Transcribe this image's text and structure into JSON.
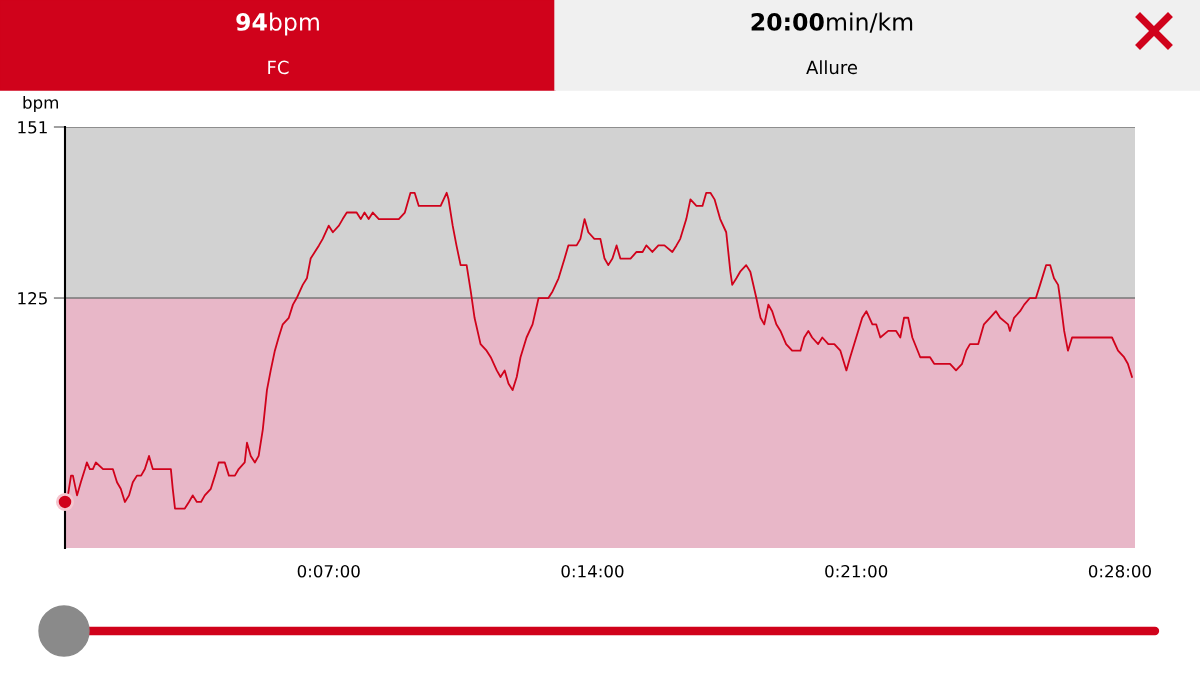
{
  "chart_data": {
    "type": "line",
    "ylabel": "bpm",
    "annotations": [
      "94bpm",
      "FC",
      "20:00min/km",
      "Allure"
    ],
    "xlim": [
      0,
      28.4
    ],
    "ylim": [
      87,
      151
    ],
    "xticks": [
      {
        "value": 7,
        "label": "0:07:00"
      },
      {
        "value": 14,
        "label": "0:14:00"
      },
      {
        "value": 21,
        "label": "0:21:00"
      },
      {
        "value": 28,
        "label": "0:28:00"
      }
    ],
    "yticks": [
      125,
      151
    ],
    "grid": "y",
    "marker": "none",
    "line_style": "solid",
    "bands": [
      {
        "axis": "y",
        "from": 125,
        "to": 151,
        "color": "#d2d2d2"
      },
      {
        "axis": "y",
        "from": 87,
        "to": 125,
        "color": "#e8b7c8"
      }
    ],
    "series": [
      {
        "color": "#d0021b",
        "x": [
          0,
          0.05,
          0.16,
          0.21,
          0.32,
          0.42,
          0.53,
          0.58,
          0.66,
          0.74,
          0.82,
          1.01,
          1.11,
          1.27,
          1.38,
          1.48,
          1.59,
          1.7,
          1.8,
          1.91,
          2.02,
          2.12,
          2.23,
          2.33,
          2.44,
          2.55,
          2.7,
          2.81,
          2.86,
          2.92,
          3.08,
          3.18,
          3.29,
          3.39,
          3.5,
          3.61,
          3.71,
          3.87,
          3.98,
          4.08,
          4.24,
          4.35,
          4.51,
          4.61,
          4.77,
          4.83,
          4.93,
          5.04,
          5.14,
          5.25,
          5.36,
          5.46,
          5.57,
          5.67,
          5.78,
          5.94,
          6.05,
          6.15,
          6.31,
          6.42,
          6.52,
          6.63,
          6.74,
          6.84,
          7.0,
          7.11,
          7.27,
          7.37,
          7.48,
          7.74,
          7.85,
          7.95,
          8.06,
          8.17,
          8.33,
          8.59,
          8.86,
          9.02,
          9.17,
          9.28,
          9.39,
          9.71,
          9.97,
          10.13,
          10.18,
          10.29,
          10.39,
          10.5,
          10.66,
          10.77,
          10.87,
          11.03,
          11.19,
          11.3,
          11.46,
          11.56,
          11.67,
          11.77,
          11.88,
          11.99,
          12.09,
          12.25,
          12.41,
          12.57,
          12.83,
          12.94,
          13.1,
          13.26,
          13.36,
          13.58,
          13.68,
          13.79,
          13.89,
          14.05,
          14.21,
          14.32,
          14.42,
          14.53,
          14.64,
          14.74,
          15.01,
          15.17,
          15.33,
          15.43,
          15.59,
          15.75,
          15.91,
          16.12,
          16.23,
          16.33,
          16.49,
          16.6,
          16.76,
          16.92,
          17.02,
          17.13,
          17.24,
          17.39,
          17.55,
          17.66,
          17.71,
          17.82,
          17.92,
          18.08,
          18.19,
          18.35,
          18.46,
          18.56,
          18.67,
          18.77,
          18.88,
          18.99,
          19.14,
          19.3,
          19.52,
          19.62,
          19.73,
          19.83,
          19.99,
          20.1,
          20.26,
          20.42,
          20.58,
          20.74,
          20.84,
          21.0,
          21.16,
          21.27,
          21.43,
          21.53,
          21.64,
          21.85,
          22.06,
          22.17,
          22.27,
          22.38,
          22.49,
          22.7,
          22.96,
          23.07,
          23.49,
          23.65,
          23.81,
          23.92,
          24.02,
          24.24,
          24.39,
          24.55,
          24.71,
          24.82,
          25.03,
          25.08,
          25.19,
          25.35,
          25.46,
          25.61,
          25.77,
          25.88,
          26.04,
          26.15,
          26.25,
          26.36,
          26.41,
          26.52,
          26.62,
          26.73,
          26.94,
          27.1,
          27.26,
          27.42,
          27.58,
          27.68,
          27.79,
          27.95,
          28.11,
          28.21,
          28.32
        ],
        "values": [
          94,
          94,
          98,
          98,
          95,
          97,
          99,
          100,
          99,
          99,
          100,
          99,
          99,
          99,
          97,
          96,
          94,
          95,
          97,
          98,
          98,
          99,
          101,
          99,
          99,
          99,
          99,
          99,
          96,
          93,
          93,
          93,
          94,
          95,
          94,
          94,
          95,
          96,
          98,
          100,
          100,
          98,
          98,
          99,
          100,
          103,
          101,
          100,
          101,
          105,
          111,
          114,
          117,
          119,
          121,
          122,
          124,
          125,
          127,
          128,
          131,
          132,
          133,
          134,
          136,
          135,
          136,
          137,
          138,
          138,
          137,
          138,
          137,
          138,
          137,
          137,
          137,
          138,
          141,
          141,
          139,
          139,
          139,
          141,
          140,
          136,
          133,
          130,
          130,
          126,
          122,
          118,
          117,
          116,
          114,
          113,
          114,
          112,
          111,
          113,
          116,
          119,
          121,
          125,
          125,
          126,
          128,
          131,
          133,
          133,
          134,
          137,
          135,
          134,
          134,
          131,
          130,
          131,
          133,
          131,
          131,
          132,
          132,
          133,
          132,
          133,
          133,
          132,
          133,
          134,
          137,
          140,
          139,
          139,
          141,
          141,
          140,
          137,
          135,
          129,
          127,
          128,
          129,
          130,
          129,
          125,
          122,
          121,
          124,
          123,
          121,
          120,
          118,
          117,
          117,
          119,
          120,
          119,
          118,
          119,
          118,
          118,
          117,
          114,
          116,
          119,
          122,
          123,
          121,
          121,
          119,
          120,
          120,
          119,
          122,
          122,
          119,
          116,
          116,
          115,
          115,
          114,
          115,
          117,
          118,
          118,
          121,
          122,
          123,
          122,
          121,
          120,
          122,
          123,
          124,
          125,
          125,
          127,
          130,
          130,
          128,
          127,
          125,
          120,
          117,
          119,
          119,
          119,
          119,
          119,
          119,
          119,
          119,
          117,
          116,
          115,
          113
        ]
      }
    ]
  }
}
